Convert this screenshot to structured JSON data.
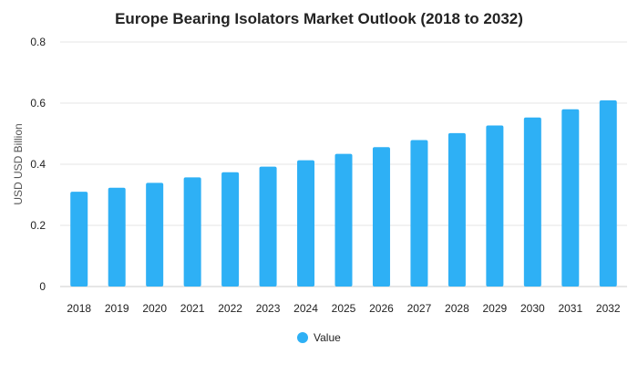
{
  "chart_data": {
    "type": "bar",
    "title": "Europe Bearing Isolators Market Outlook (2018 to 2032)",
    "xlabel": "",
    "ylabel": "USD USD Billion",
    "categories": [
      "2018",
      "2019",
      "2020",
      "2021",
      "2022",
      "2023",
      "2024",
      "2025",
      "2026",
      "2027",
      "2028",
      "2029",
      "2030",
      "2031",
      "2032"
    ],
    "series": [
      {
        "name": "Value",
        "color": "#2eb0f5",
        "values": [
          0.31,
          0.323,
          0.339,
          0.357,
          0.374,
          0.392,
          0.413,
          0.434,
          0.456,
          0.479,
          0.502,
          0.527,
          0.553,
          0.58,
          0.609
        ]
      }
    ],
    "ylim": [
      0,
      0.8
    ],
    "yticks": [
      "0",
      "0.2",
      "0.4",
      "0.6",
      "0.8"
    ],
    "grid": true,
    "legend_position": "bottom-center"
  }
}
